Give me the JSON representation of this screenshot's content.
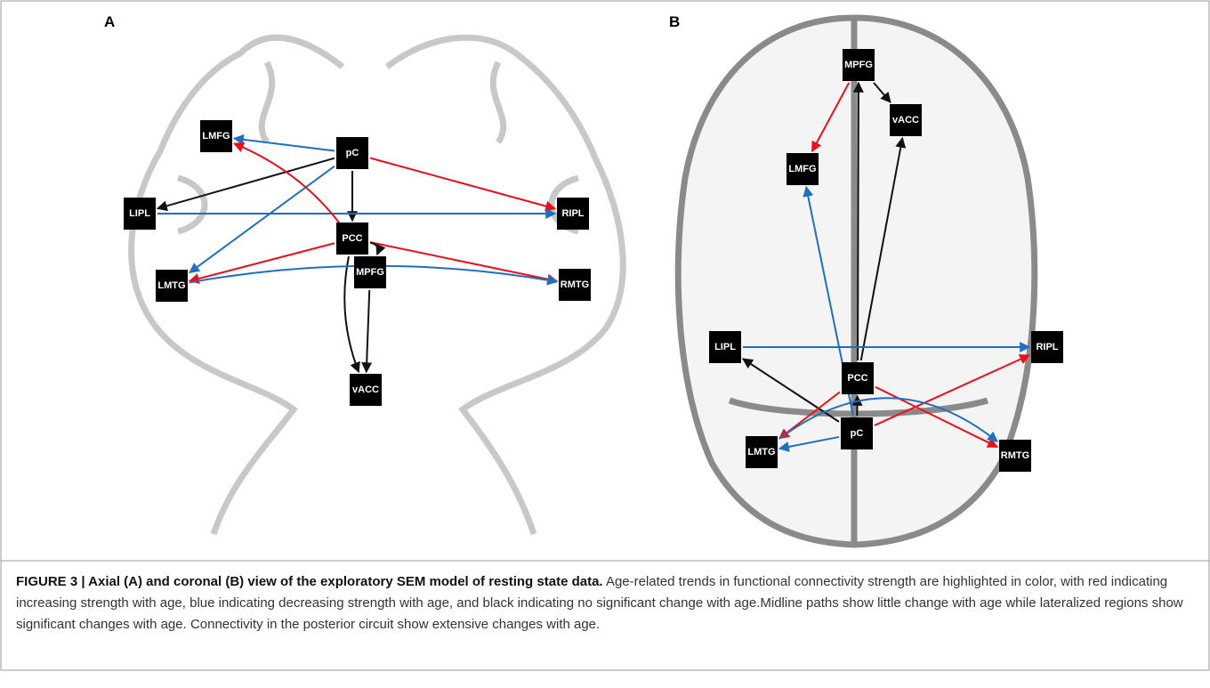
{
  "panels": [
    {
      "label": "A",
      "nodes": [
        {
          "label": "pC"
        },
        {
          "label": "LMFG"
        },
        {
          "label": "LIPL"
        },
        {
          "label": "PCC"
        },
        {
          "label": "RIPL"
        },
        {
          "label": "LMTG"
        },
        {
          "label": "MPFG"
        },
        {
          "label": "RMTG"
        },
        {
          "label": "vACC"
        }
      ]
    },
    {
      "label": "B",
      "nodes": [
        {
          "label": "MPFG"
        },
        {
          "label": "vACC"
        },
        {
          "label": "LMFG"
        },
        {
          "label": "LIPL"
        },
        {
          "label": "RIPL"
        },
        {
          "label": "PCC"
        },
        {
          "label": "pC"
        },
        {
          "label": "LMTG"
        },
        {
          "label": "RMTG"
        }
      ]
    }
  ],
  "caption": {
    "bold": "FIGURE 3 | Axial (A) and coronal (B) view of the exploratory SEM model of resting state data.",
    "text": "Age-related trends in functional connectivity strength are highlighted in color, with red indicating increasing strength with age, blue indicating decreasing strength with age, and black indicating no significant change with age.Midline paths show little change with age while lateralized regions show significant changes with age. Connectivity in the posterior circuit show extensive changes with age."
  }
}
